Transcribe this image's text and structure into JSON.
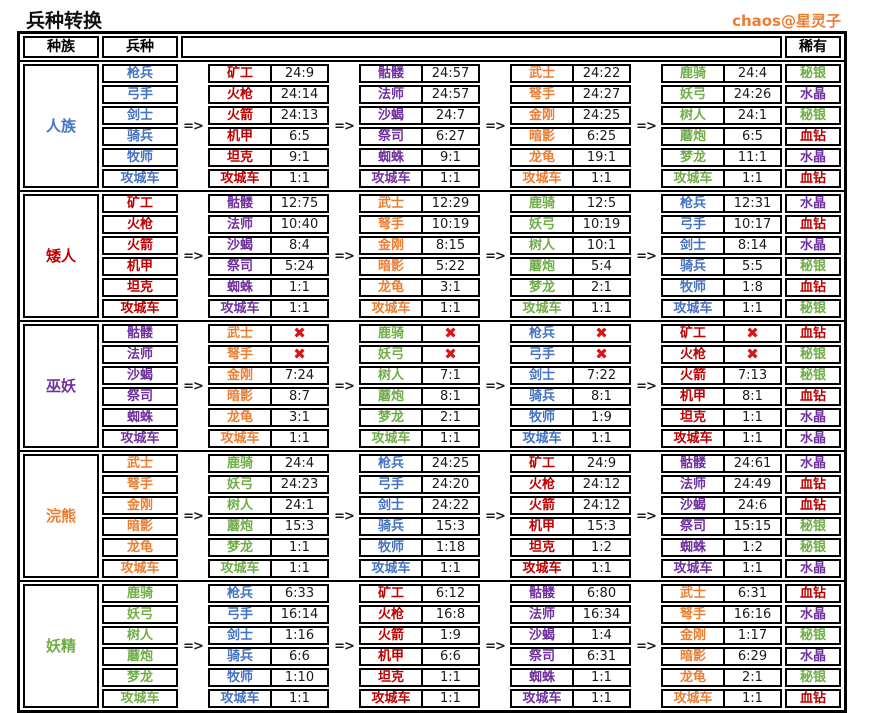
{
  "title": "兵种转换",
  "credit": "chaos@星灵子",
  "header": {
    "race": "种族",
    "unit": "兵种",
    "rare": "稀有"
  },
  "arrow": "=>",
  "cross_mark": "✖",
  "palette": {
    "blue": "#4472C4",
    "red": "#C00000",
    "purple": "#7030A0",
    "orange": "#ED7D31",
    "green": "#70AD47",
    "cross": "#DB1414",
    "credit_orange": "#ED7D31"
  },
  "rare_colors": {
    "秘银": "green",
    "水晶": "purple",
    "血钻": "red"
  },
  "blocks": [
    {
      "race": {
        "label": "人族",
        "color": "blue"
      },
      "units": {
        "color": "blue",
        "names": [
          "枪兵",
          "弓手",
          "剑士",
          "骑兵",
          "牧师",
          "攻城车"
        ]
      },
      "groups": [
        {
          "color": "red",
          "rows": [
            [
              "矿工",
              "24:9"
            ],
            [
              "火枪",
              "24:14"
            ],
            [
              "火箭",
              "24:13"
            ],
            [
              "机甲",
              "6:5"
            ],
            [
              "坦克",
              "9:1"
            ],
            [
              "攻城车",
              "1:1"
            ]
          ]
        },
        {
          "color": "purple",
          "rows": [
            [
              "骷髅",
              "24:57"
            ],
            [
              "法师",
              "24:57"
            ],
            [
              "沙蝎",
              "24:7"
            ],
            [
              "祭司",
              "6:27"
            ],
            [
              "蜘蛛",
              "9:1"
            ],
            [
              "攻城车",
              "1:1"
            ]
          ]
        },
        {
          "color": "orange",
          "rows": [
            [
              "武士",
              "24:22"
            ],
            [
              "弩手",
              "24:27"
            ],
            [
              "金刚",
              "24:25"
            ],
            [
              "暗影",
              "6:25"
            ],
            [
              "龙龟",
              "19:1"
            ],
            [
              "攻城车",
              "1:1"
            ]
          ]
        },
        {
          "color": "green",
          "rows": [
            [
              "鹿骑",
              "24:4"
            ],
            [
              "妖弓",
              "24:26"
            ],
            [
              "树人",
              "24:1"
            ],
            [
              "蘑炮",
              "6:5"
            ],
            [
              "梦龙",
              "11:1"
            ],
            [
              "攻城车",
              "1:1"
            ]
          ]
        }
      ],
      "rare": [
        "秘银",
        "水晶",
        "秘银",
        "血钻",
        "水晶",
        "血钻"
      ]
    },
    {
      "race": {
        "label": "矮人",
        "color": "red"
      },
      "units": {
        "color": "red",
        "names": [
          "矿工",
          "火枪",
          "火箭",
          "机甲",
          "坦克",
          "攻城车"
        ]
      },
      "groups": [
        {
          "color": "purple",
          "rows": [
            [
              "骷髅",
              "12:75"
            ],
            [
              "法师",
              "10:40"
            ],
            [
              "沙蝎",
              "8:4"
            ],
            [
              "祭司",
              "5:24"
            ],
            [
              "蜘蛛",
              "1:1"
            ],
            [
              "攻城车",
              "1:1"
            ]
          ]
        },
        {
          "color": "orange",
          "rows": [
            [
              "武士",
              "12:29"
            ],
            [
              "弩手",
              "10:19"
            ],
            [
              "金刚",
              "8:15"
            ],
            [
              "暗影",
              "5:22"
            ],
            [
              "龙龟",
              "3:1"
            ],
            [
              "攻城车",
              "1:1"
            ]
          ]
        },
        {
          "color": "green",
          "rows": [
            [
              "鹿骑",
              "12:5"
            ],
            [
              "妖弓",
              "10:19"
            ],
            [
              "树人",
              "10:1"
            ],
            [
              "蘑炮",
              "5:4"
            ],
            [
              "梦龙",
              "2:1"
            ],
            [
              "攻城车",
              "1:1"
            ]
          ]
        },
        {
          "color": "blue",
          "rows": [
            [
              "枪兵",
              "12:31"
            ],
            [
              "弓手",
              "10:17"
            ],
            [
              "剑士",
              "8:14"
            ],
            [
              "骑兵",
              "5:5"
            ],
            [
              "牧师",
              "1:8"
            ],
            [
              "攻城车",
              "1:1"
            ]
          ]
        }
      ],
      "rare": [
        "水晶",
        "血钻",
        "水晶",
        "秘银",
        "血钻",
        "秘银"
      ]
    },
    {
      "race": {
        "label": "巫妖",
        "color": "purple"
      },
      "units": {
        "color": "purple",
        "names": [
          "骷髅",
          "法师",
          "沙蝎",
          "祭司",
          "蜘蛛",
          "攻城车"
        ]
      },
      "groups": [
        {
          "color": "orange",
          "rows": [
            [
              "武士",
              "✖"
            ],
            [
              "弩手",
              "✖"
            ],
            [
              "金刚",
              "7:24"
            ],
            [
              "暗影",
              "8:7"
            ],
            [
              "龙龟",
              "3:1"
            ],
            [
              "攻城车",
              "1:1"
            ]
          ]
        },
        {
          "color": "green",
          "rows": [
            [
              "鹿骑",
              "✖"
            ],
            [
              "妖弓",
              "✖"
            ],
            [
              "树人",
              "7:1"
            ],
            [
              "蘑炮",
              "8:1"
            ],
            [
              "梦龙",
              "2:1"
            ],
            [
              "攻城车",
              "1:1"
            ]
          ]
        },
        {
          "color": "blue",
          "rows": [
            [
              "枪兵",
              "✖"
            ],
            [
              "弓手",
              "✖"
            ],
            [
              "剑士",
              "7:22"
            ],
            [
              "骑兵",
              "8:1"
            ],
            [
              "牧师",
              "1:9"
            ],
            [
              "攻城车",
              "1:1"
            ]
          ]
        },
        {
          "color": "red",
          "rows": [
            [
              "矿工",
              "✖"
            ],
            [
              "火枪",
              "✖"
            ],
            [
              "火箭",
              "7:13"
            ],
            [
              "机甲",
              "8:1"
            ],
            [
              "坦克",
              "1:1"
            ],
            [
              "攻城车",
              "1:1"
            ]
          ]
        }
      ],
      "rare": [
        "血钻",
        "秘银",
        "秘银",
        "血钻",
        "水晶",
        "水晶"
      ]
    },
    {
      "race": {
        "label": "浣熊",
        "color": "orange"
      },
      "units": {
        "color": "orange",
        "names": [
          "武士",
          "弩手",
          "金刚",
          "暗影",
          "龙龟",
          "攻城车"
        ]
      },
      "groups": [
        {
          "color": "green",
          "rows": [
            [
              "鹿骑",
              "24:4"
            ],
            [
              "妖弓",
              "24:23"
            ],
            [
              "树人",
              "24:1"
            ],
            [
              "蘑炮",
              "15:3"
            ],
            [
              "梦龙",
              "1:1"
            ],
            [
              "攻城车",
              "1:1"
            ]
          ]
        },
        {
          "color": "blue",
          "rows": [
            [
              "枪兵",
              "24:25"
            ],
            [
              "弓手",
              "24:20"
            ],
            [
              "剑士",
              "24:22"
            ],
            [
              "骑兵",
              "15:3"
            ],
            [
              "牧师",
              "1:18"
            ],
            [
              "攻城车",
              "1:1"
            ]
          ]
        },
        {
          "color": "red",
          "rows": [
            [
              "矿工",
              "24:9"
            ],
            [
              "火枪",
              "24:12"
            ],
            [
              "火箭",
              "24:12"
            ],
            [
              "机甲",
              "15:3"
            ],
            [
              "坦克",
              "1:2"
            ],
            [
              "攻城车",
              "1:1"
            ]
          ]
        },
        {
          "color": "purple",
          "rows": [
            [
              "骷髅",
              "24:61"
            ],
            [
              "法师",
              "24:49"
            ],
            [
              "沙蝎",
              "24:6"
            ],
            [
              "祭司",
              "15:15"
            ],
            [
              "蜘蛛",
              "1:2"
            ],
            [
              "攻城车",
              "1:1"
            ]
          ]
        }
      ],
      "rare": [
        "水晶",
        "血钻",
        "血钻",
        "秘银",
        "秘银",
        "水晶"
      ]
    },
    {
      "race": {
        "label": "妖精",
        "color": "green"
      },
      "units": {
        "color": "green",
        "names": [
          "鹿骑",
          "妖弓",
          "树人",
          "蘑炮",
          "梦龙",
          "攻城车"
        ]
      },
      "groups": [
        {
          "color": "blue",
          "rows": [
            [
              "枪兵",
              "6:33"
            ],
            [
              "弓手",
              "16:14"
            ],
            [
              "剑士",
              "1:16"
            ],
            [
              "骑兵",
              "6:6"
            ],
            [
              "牧师",
              "1:10"
            ],
            [
              "攻城车",
              "1:1"
            ]
          ]
        },
        {
          "color": "red",
          "rows": [
            [
              "矿工",
              "6:12"
            ],
            [
              "火枪",
              "16:8"
            ],
            [
              "火箭",
              "1:9"
            ],
            [
              "机甲",
              "6:6"
            ],
            [
              "坦克",
              "1:1"
            ],
            [
              "攻城车",
              "1:1"
            ]
          ]
        },
        {
          "color": "purple",
          "rows": [
            [
              "骷髅",
              "6:80"
            ],
            [
              "法师",
              "16:34"
            ],
            [
              "沙蝎",
              "1:4"
            ],
            [
              "祭司",
              "6:31"
            ],
            [
              "蜘蛛",
              "1:1"
            ],
            [
              "攻城车",
              "1:1"
            ]
          ]
        },
        {
          "color": "orange",
          "rows": [
            [
              "武士",
              "6:31"
            ],
            [
              "弩手",
              "16:16"
            ],
            [
              "金刚",
              "1:17"
            ],
            [
              "暗影",
              "6:29"
            ],
            [
              "龙龟",
              "2:1"
            ],
            [
              "攻城车",
              "1:1"
            ]
          ]
        }
      ],
      "rare": [
        "血钻",
        "水晶",
        "秘银",
        "水晶",
        "秘银",
        "血钻"
      ]
    }
  ]
}
